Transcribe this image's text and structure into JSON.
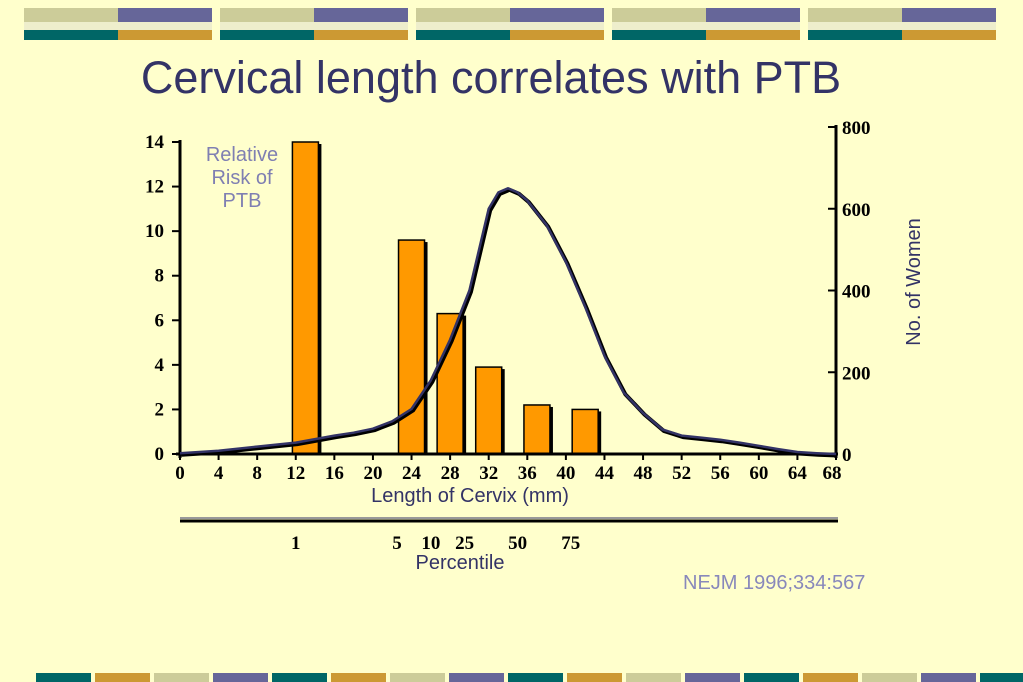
{
  "title": "Cervical length correlates with PTB",
  "source": "NEJM 1996;334:567",
  "colors": {
    "background": "#FFFFCC",
    "bar_fill": "#FF9900",
    "curve": "#333366",
    "title": "#333366",
    "deco_teal": "#006666",
    "deco_olive": "#CCCC99",
    "deco_gold": "#CC9933",
    "deco_purple": "#666699",
    "deco_cream": "#EEEECC"
  },
  "chart_data": {
    "type": "bar",
    "xlabel": "Length of Cervix (mm)",
    "ylabel_left": "Relative Risk of PTB",
    "ylabel_right": "No. of Women",
    "x_ticks": [
      "0",
      "4",
      "8",
      "12",
      "16",
      "20",
      "24",
      "28",
      "32",
      "36",
      "40",
      "44",
      "48",
      "52",
      "56",
      "60",
      "64",
      "68"
    ],
    "y_left_ticks": [
      "0",
      "2",
      "4",
      "6",
      "8",
      "10",
      "12",
      "14"
    ],
    "y_right_ticks": [
      "0",
      "200",
      "400",
      "600",
      "800"
    ],
    "xlim": [
      0,
      68
    ],
    "ylim_left": [
      0,
      14
    ],
    "ylim_right": [
      0,
      800
    ],
    "bars": {
      "name": "Relative Risk of PTB",
      "x": [
        13,
        24,
        28,
        32,
        37,
        42
      ],
      "values": [
        14,
        9.6,
        6.3,
        3.9,
        2.2,
        2.0
      ]
    },
    "line": {
      "name": "No. of Women",
      "x": [
        0,
        4,
        8,
        12,
        16,
        18,
        20,
        22,
        24,
        26,
        28,
        30,
        32,
        33,
        34,
        35,
        36,
        38,
        40,
        42,
        44,
        46,
        48,
        50,
        52,
        54,
        56,
        58,
        60,
        62,
        64,
        66,
        68
      ],
      "values": [
        2,
        8,
        18,
        28,
        45,
        52,
        62,
        80,
        110,
        180,
        280,
        400,
        600,
        640,
        650,
        640,
        620,
        560,
        470,
        360,
        240,
        150,
        100,
        60,
        45,
        40,
        35,
        28,
        20,
        12,
        5,
        2,
        0
      ]
    },
    "percentile": {
      "label": "Percentile",
      "ticks": [
        "1",
        "5",
        "10",
        "25",
        "50",
        "75"
      ],
      "x": [
        12,
        22.5,
        26,
        29.5,
        35,
        40.5
      ]
    }
  }
}
